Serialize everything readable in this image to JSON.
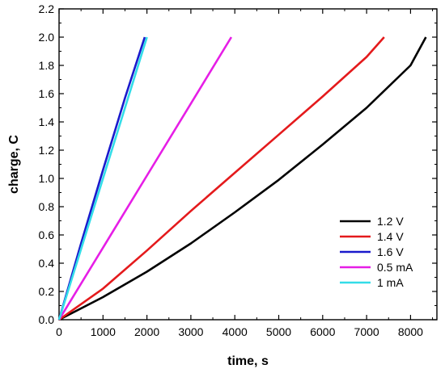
{
  "chart_data": {
    "type": "line",
    "xlabel": "time, s",
    "ylabel": "charge, C",
    "xlim": [
      0,
      8600
    ],
    "ylim": [
      0,
      2.2
    ],
    "xticks": [
      0,
      1000,
      2000,
      3000,
      4000,
      5000,
      6000,
      7000,
      8000
    ],
    "yticks": [
      0.0,
      0.2,
      0.4,
      0.6,
      0.8,
      1.0,
      1.2,
      1.4,
      1.6,
      1.8,
      2.0,
      2.2
    ],
    "xtick_labels": [
      "0",
      "1000",
      "2000",
      "3000",
      "4000",
      "5000",
      "6000",
      "7000",
      "8000"
    ],
    "ytick_labels": [
      "0.0",
      "0.2",
      "0.4",
      "0.6",
      "0.8",
      "1.0",
      "1.2",
      "1.4",
      "1.6",
      "1.8",
      "2.0",
      "2.2"
    ],
    "grid": false,
    "legend_position": "bottom-right",
    "series": [
      {
        "name": "1.2 V",
        "color": "#000000",
        "x": [
          0,
          1000,
          2000,
          3000,
          4000,
          5000,
          6000,
          7000,
          8000,
          8350
        ],
        "y": [
          0,
          0.16,
          0.34,
          0.54,
          0.76,
          0.99,
          1.24,
          1.5,
          1.8,
          2.0
        ]
      },
      {
        "name": "1.4 V",
        "color": "#e41a1c",
        "x": [
          0,
          1000,
          2000,
          3000,
          4000,
          5000,
          6000,
          7000,
          7400
        ],
        "y": [
          0,
          0.22,
          0.49,
          0.77,
          1.04,
          1.31,
          1.58,
          1.86,
          2.0
        ]
      },
      {
        "name": "1.6 V",
        "color": "#1a1acc",
        "x": [
          0,
          500,
          1000,
          1500,
          1950
        ],
        "y": [
          0,
          0.54,
          1.06,
          1.57,
          2.0
        ]
      },
      {
        "name": "0.5 mA",
        "color": "#e61ee6",
        "x": [
          0,
          1000,
          2000,
          3000,
          3920
        ],
        "y": [
          0,
          0.51,
          1.02,
          1.53,
          2.0
        ]
      },
      {
        "name": "1 mA",
        "color": "#33dde8",
        "x": [
          0,
          500,
          1000,
          1500,
          2000
        ],
        "y": [
          0,
          0.5,
          1.0,
          1.5,
          2.0
        ]
      }
    ]
  }
}
